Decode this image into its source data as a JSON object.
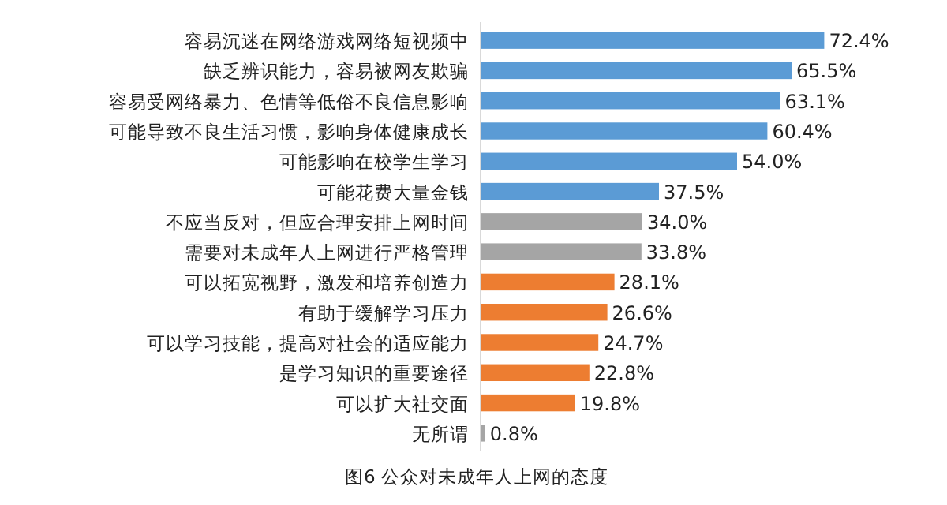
{
  "chart_data": {
    "type": "bar",
    "orientation": "horizontal",
    "title": "图6 公众对未成年人上网的态度",
    "categories": [
      "容易沉迷在网络游戏网络短视频中",
      "缺乏辨识能力，容易被网友欺骗",
      "容易受网络暴力、色情等低俗不良信息影响",
      "可能导致不良生活习惯，影响身体健康成长",
      "可能影响在校学生学习",
      "可能花费大量金钱",
      "不应当反对，但应合理安排上网时间",
      "需要对未成年人上网进行严格管理",
      "可以拓宽视野，激发和培养创造力",
      "有助于缓解学习压力",
      "可以学习技能，提高对社会的适应能力",
      "是学习知识的重要途径",
      "可以扩大社交面",
      "无所谓"
    ],
    "values": [
      72.4,
      65.5,
      63.1,
      60.4,
      54.0,
      37.5,
      34.0,
      33.8,
      28.1,
      26.6,
      24.7,
      22.8,
      19.8,
      0.8
    ],
    "value_labels": [
      "72.4%",
      "65.5%",
      "63.1%",
      "60.4%",
      "54.0%",
      "37.5%",
      "34.0%",
      "33.8%",
      "28.1%",
      "26.6%",
      "24.7%",
      "22.8%",
      "19.8%",
      "0.8%"
    ],
    "colors": [
      "#5b9bd5",
      "#5b9bd5",
      "#5b9bd5",
      "#5b9bd5",
      "#5b9bd5",
      "#5b9bd5",
      "#a5a5a5",
      "#a5a5a5",
      "#ed7d31",
      "#ed7d31",
      "#ed7d31",
      "#ed7d31",
      "#ed7d31",
      "#a5a5a5"
    ]
  }
}
